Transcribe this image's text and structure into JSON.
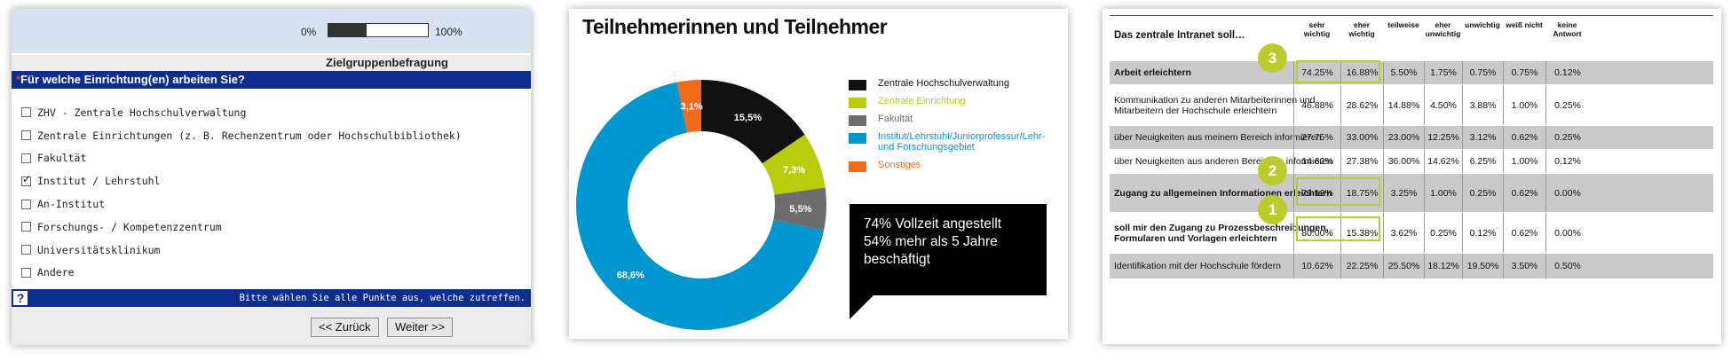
{
  "survey": {
    "progress": {
      "start_label": "0%",
      "end_label": "100%",
      "fraction": 0.38
    },
    "section_title": "Zielgruppenbefragung",
    "question": {
      "star": "*",
      "text": "Für welche Einrichtung(en) arbeiten Sie?"
    },
    "options": [
      {
        "label": "ZHV - Zentrale Hochschulverwaltung",
        "checked": false
      },
      {
        "label": "Zentrale Einrichtungen (z. B. Rechenzentrum oder Hochschulbibliothek)",
        "checked": false
      },
      {
        "label": "Fakultät",
        "checked": false
      },
      {
        "label": "Institut / Lehrstuhl",
        "checked": true
      },
      {
        "label": "An-Institut",
        "checked": false
      },
      {
        "label": "Forschungs- / Kompetenzzentrum",
        "checked": false
      },
      {
        "label": "Universitätsklinikum",
        "checked": false
      },
      {
        "label": "Andere",
        "checked": false
      }
    ],
    "help_icon": "?",
    "help_text": "Bitte wählen Sie alle Punkte aus, welche zutreffen.",
    "back_label": "<< Zurück",
    "next_label": "Weiter >>"
  },
  "chart_data": {
    "type": "pie",
    "title": "Teilnehmerinnen und Teilnehmer",
    "slices": [
      {
        "label": "Zentrale Hochschulverwaltung",
        "value": 15.5,
        "display": "15,5%",
        "color": "#111111"
      },
      {
        "label": "Zentrale Einrichtung",
        "value": 7.3,
        "display": "7,3%",
        "color": "#b9cc0b"
      },
      {
        "label": "Fakultät",
        "value": 5.5,
        "display": "5,5%",
        "color": "#6d6d6d"
      },
      {
        "label": "Institut/Lehrstuhl/Juniorprofessur/Lehr- und Forschungsgebiet",
        "value": 68.6,
        "display": "68,6%",
        "color": "#0096cf"
      },
      {
        "label": "Sonstiges",
        "value": 3.1,
        "display": "3,1%",
        "color": "#f26a1b"
      }
    ],
    "legend_placement": "right",
    "callout": [
      "74% Vollzeit angestellt",
      "54% mehr als 5 Jahre",
      "beschäftigt"
    ]
  },
  "table": {
    "title": "Das zentrale Intranet soll…",
    "columns": [
      "sehr\nwichtig",
      "eher\nwichtig",
      "teilweise",
      "eher\nunwichtig",
      "unwichtig",
      "weiß nicht",
      "keine\nAntwort"
    ],
    "rows": [
      {
        "label": "Arbeit erleichtern",
        "bold": true,
        "grey": true,
        "values": [
          "74.25%",
          "16.88%",
          "5.50%",
          "1.75%",
          "0.75%",
          "0.75%",
          "0.12%"
        ]
      },
      {
        "label": "Kommunikation zu anderen Mitarbeiterinnen und Mitarbeitern der Hochschule erleichtern",
        "bold": false,
        "grey": false,
        "values": [
          "46.88%",
          "28.62%",
          "14.88%",
          "4.50%",
          "3.88%",
          "1.00%",
          "0.25%"
        ]
      },
      {
        "label": "über Neuigkeiten aus meinem Bereich informieren",
        "bold": false,
        "grey": true,
        "values": [
          "27.75%",
          "33.00%",
          "23.00%",
          "12.25%",
          "3.12%",
          "0.62%",
          "0.25%"
        ]
      },
      {
        "label": "über Neuigkeiten aus anderen Bereichen informieren",
        "bold": false,
        "grey": false,
        "values": [
          "14.62%",
          "27.38%",
          "36.00%",
          "14.62%",
          "6.25%",
          "1.00%",
          "0.12%"
        ]
      },
      {
        "label": "Zugang zu allgemeinen Informationen erleichtern",
        "bold": true,
        "grey": true,
        "values": [
          "76.12%",
          "18.75%",
          "3.25%",
          "1.00%",
          "0.25%",
          "0.62%",
          "0.00%"
        ]
      },
      {
        "label": "soll mir den Zugang zu Prozessbeschreibungen, Formularen und Vorlagen erleichtern",
        "bold": true,
        "grey": false,
        "values": [
          "80.00%",
          "15.38%",
          "3.62%",
          "0.25%",
          "0.12%",
          "0.62%",
          "0.00%"
        ]
      },
      {
        "label": "Identifikation mit der Hochschule fördern",
        "bold": false,
        "grey": true,
        "values": [
          "10.62%",
          "22.25%",
          "25.50%",
          "18.12%",
          "19.50%",
          "3.50%",
          "0.50%"
        ]
      }
    ],
    "badges": [
      {
        "number": "3",
        "row": 0
      },
      {
        "number": "2",
        "row": 4
      },
      {
        "number": "1",
        "row": 5
      }
    ],
    "accent_color": "#b9cc2c"
  }
}
